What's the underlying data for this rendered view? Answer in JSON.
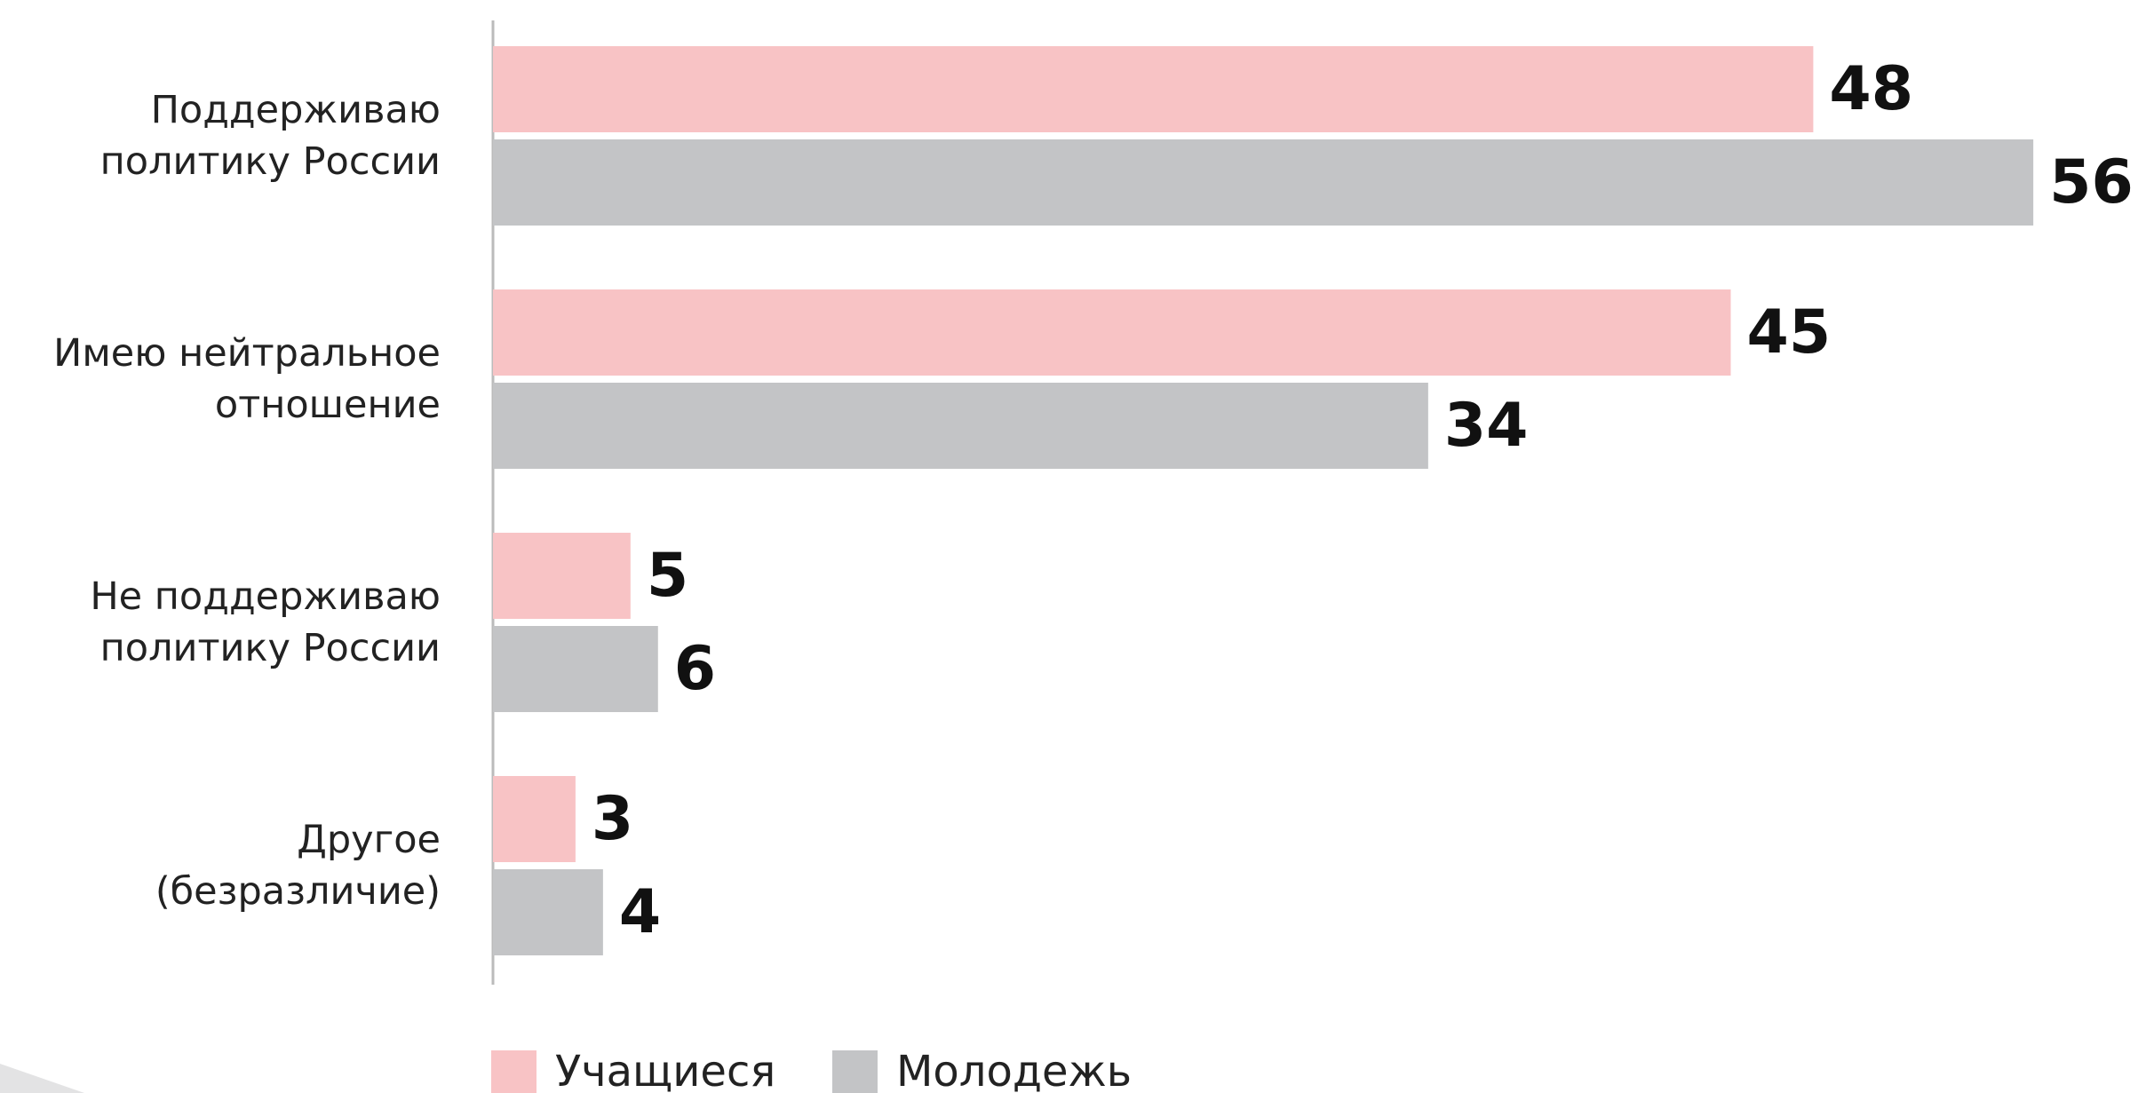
{
  "chart_data": {
    "type": "barh",
    "categories": [
      "Поддерживаю\nполитику России",
      "Имею нейтральное\nотношение",
      "Не поддерживаю\nполитику России",
      "Другое\n(безразличие)"
    ],
    "series": [
      {
        "name": "Учащиеся",
        "color": "#f8c3c5",
        "values": [
          48,
          45,
          5,
          3
        ]
      },
      {
        "name": "Молодежь",
        "color": "#c3c4c6",
        "values": [
          56,
          34,
          6,
          4
        ]
      }
    ],
    "xlim": [
      0,
      60
    ],
    "legend": "bottom"
  }
}
